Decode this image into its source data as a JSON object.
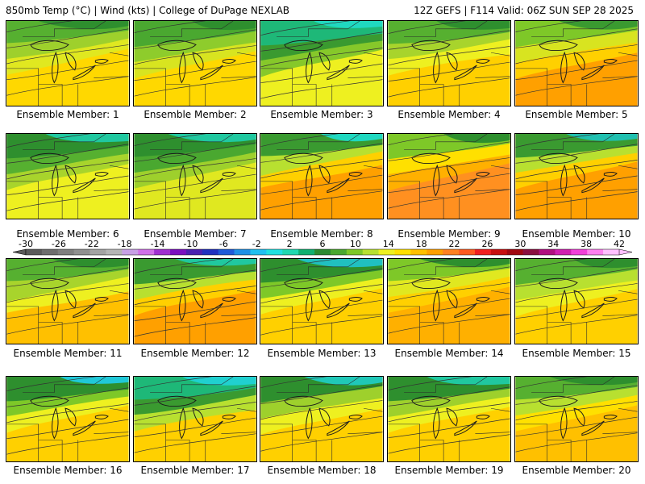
{
  "header": {
    "left": "850mb Temp (°C) | Wind (kts) | College of DuPage NEXLAB",
    "right": "12Z GEFS | F114 Valid: 06Z SUN SEP 28 2025"
  },
  "colorbar": {
    "labels": [
      "-30",
      "-26",
      "-22",
      "-18",
      "-14",
      "-10",
      "-6",
      "-2",
      "2",
      "6",
      "10",
      "14",
      "18",
      "22",
      "26",
      "30",
      "34",
      "38",
      "42"
    ],
    "colors": [
      "#5a5a5a",
      "#6e6e6e",
      "#7f7f7f",
      "#909090",
      "#a3a3a3",
      "#b5b5b5",
      "#c8a0e6",
      "#d070e8",
      "#a030d0",
      "#7a10c0",
      "#4a20b0",
      "#2030c0",
      "#1e5ad8",
      "#1e90e6",
      "#20c0f0",
      "#20e0e0",
      "#20d8b0",
      "#10b070",
      "#2a8a30",
      "#4aa830",
      "#7ec828",
      "#b8e030",
      "#eef020",
      "#ffe000",
      "#ffc000",
      "#ffa000",
      "#ff8020",
      "#ff5a20",
      "#f02020",
      "#c81010",
      "#a00810",
      "#8a1040",
      "#b01080",
      "#d020b0",
      "#f040d8",
      "#ff80f0",
      "#ffc0ff"
    ]
  },
  "panels": [
    {
      "label": "Ensemble Member: 1",
      "palette": [
        "#2e8f2e",
        "#56b030",
        "#9ed02c",
        "#e0e820",
        "#ffd800"
      ]
    },
    {
      "label": "Ensemble Member: 2",
      "palette": [
        "#2e8f2e",
        "#4aa830",
        "#8ecc2c",
        "#d8e420",
        "#ffd800"
      ]
    },
    {
      "label": "Ensemble Member: 3",
      "palette": [
        "#20d8c0",
        "#1eb878",
        "#3a9a30",
        "#86c82a",
        "#eef020"
      ]
    },
    {
      "label": "Ensemble Member: 4",
      "palette": [
        "#2e8f2e",
        "#56b030",
        "#a8d42c",
        "#eef020",
        "#ffd000"
      ]
    },
    {
      "label": "Ensemble Member: 5",
      "palette": [
        "#3a9a30",
        "#7ec828",
        "#d8e420",
        "#ffd000",
        "#ffa000"
      ]
    },
    {
      "label": "Ensemble Member: 6",
      "palette": [
        "#20c8a0",
        "#2e8f2e",
        "#56b030",
        "#a8d42c",
        "#eef020"
      ]
    },
    {
      "label": "Ensemble Member: 7",
      "palette": [
        "#20c8a0",
        "#2e8f2e",
        "#4aa830",
        "#9ed02c",
        "#e0e820"
      ]
    },
    {
      "label": "Ensemble Member: 8",
      "palette": [
        "#20d8c0",
        "#3a9a30",
        "#b8e030",
        "#ffd000",
        "#ffa000"
      ]
    },
    {
      "label": "Ensemble Member: 9",
      "palette": [
        "#2e8f2e",
        "#7ec828",
        "#ffe000",
        "#ffb000",
        "#ff9020"
      ]
    },
    {
      "label": "Ensemble Member: 10",
      "palette": [
        "#20c0b0",
        "#3a9a30",
        "#b8e030",
        "#ffd000",
        "#ffa000"
      ]
    },
    {
      "label": "Ensemble Member: 11",
      "palette": [
        "#2e8f2e",
        "#56b030",
        "#a8d42c",
        "#eef020",
        "#ffc000"
      ]
    },
    {
      "label": "Ensemble Member: 12",
      "palette": [
        "#20c8a0",
        "#3a9a30",
        "#b8e030",
        "#ffd000",
        "#ffa000"
      ]
    },
    {
      "label": "Ensemble Member: 13",
      "palette": [
        "#20c0c0",
        "#2e8f2e",
        "#7ec828",
        "#eef020",
        "#ffd000"
      ]
    },
    {
      "label": "Ensemble Member: 14",
      "palette": [
        "#2e8f2e",
        "#7ec828",
        "#e0e820",
        "#ffd000",
        "#ffb000"
      ]
    },
    {
      "label": "Ensemble Member: 15",
      "palette": [
        "#2e8f2e",
        "#56b030",
        "#b8e030",
        "#eef020",
        "#ffd000"
      ]
    },
    {
      "label": "Ensemble Member: 16",
      "palette": [
        "#20c8d8",
        "#2e8f2e",
        "#7ec828",
        "#eef020",
        "#ffd000"
      ]
    },
    {
      "label": "Ensemble Member: 17",
      "palette": [
        "#20d0d0",
        "#1eb878",
        "#3a9a30",
        "#b8e030",
        "#ffd000"
      ]
    },
    {
      "label": "Ensemble Member: 18",
      "palette": [
        "#20c8b8",
        "#2e8f2e",
        "#9ed02c",
        "#eef020",
        "#ffd000"
      ]
    },
    {
      "label": "Ensemble Member: 19",
      "palette": [
        "#20c8a0",
        "#2e8f2e",
        "#9ed02c",
        "#eef020",
        "#ffd000"
      ]
    },
    {
      "label": "Ensemble Member: 20",
      "palette": [
        "#2e8f2e",
        "#56b030",
        "#b8e030",
        "#ffe000",
        "#ffc000"
      ]
    }
  ]
}
